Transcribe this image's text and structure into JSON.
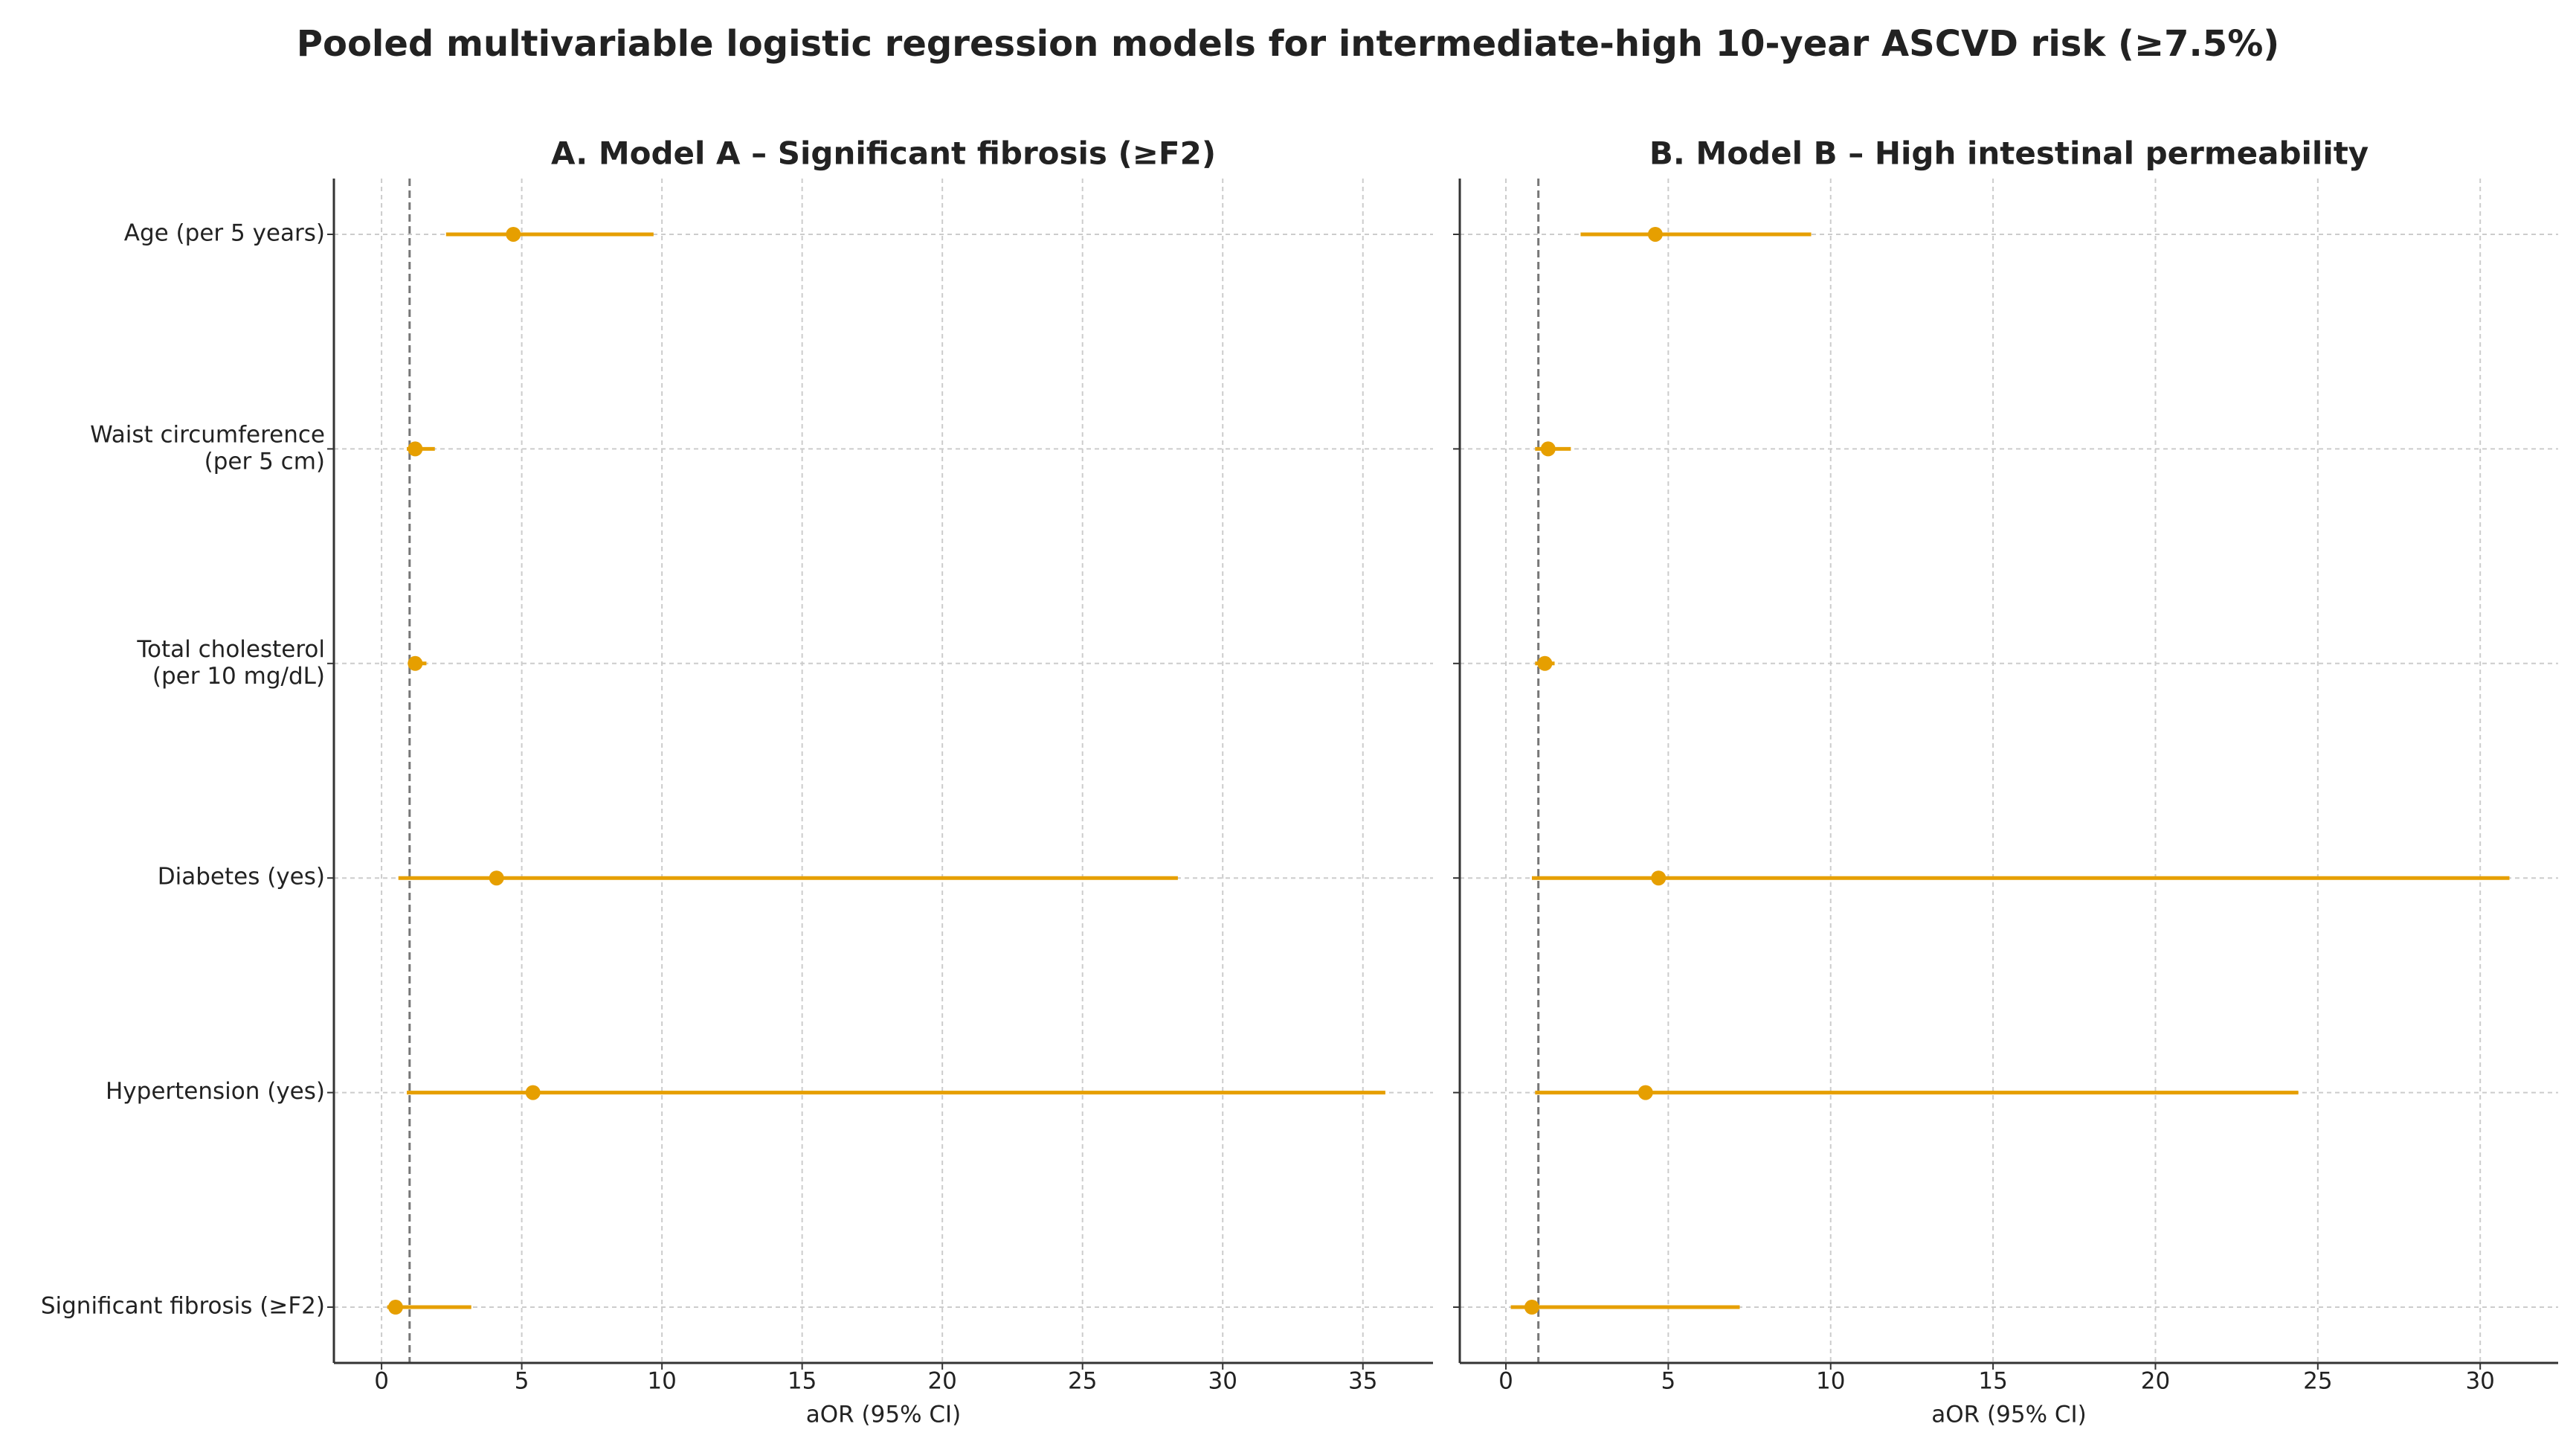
{
  "title": "Pooled multivariable logistic regression models for intermediate-high 10-year ASCVD risk (≥7.5%)",
  "chart_data": [
    {
      "type": "forest",
      "title": "A. Model A – Significant fibrosis (≥F2)",
      "categories": [
        "Age (per 5 years)",
        "Waist circumference\n(per 5 cm)",
        "Total cholesterol\n(per 10 mg/dL)",
        "Diabetes (yes)",
        "Hypertension (yes)",
        "Significant fibrosis (≥F2)"
      ],
      "values": [
        4.7,
        1.2,
        1.2,
        4.1,
        5.4,
        0.5
      ],
      "lower": [
        2.3,
        0.9,
        0.95,
        0.6,
        0.9,
        0.2
      ],
      "upper": [
        9.7,
        1.9,
        1.6,
        28.4,
        35.8,
        3.2
      ],
      "color": "#e69f00",
      "reference_line": 1,
      "xlabel": "aOR (95% CI)",
      "xlim": [
        -1.7,
        37.5
      ],
      "xticks": [
        0,
        5,
        10,
        15,
        20,
        25,
        30,
        35
      ],
      "grid": true
    },
    {
      "type": "forest",
      "title": "B. Model B – High intestinal permeability",
      "values": [
        4.6,
        1.3,
        1.2,
        4.7,
        4.3,
        0.8
      ],
      "lower": [
        2.3,
        0.9,
        0.9,
        0.8,
        0.9,
        0.15
      ],
      "upper": [
        9.4,
        2.0,
        1.5,
        30.9,
        24.4,
        7.2
      ],
      "color": "#e69f00",
      "reference_line": 1,
      "xlabel": "aOR (95% CI)",
      "xlim": [
        -1.42,
        32.4
      ],
      "xticks": [
        0,
        5,
        10,
        15,
        20,
        25,
        30
      ],
      "grid": true
    }
  ]
}
